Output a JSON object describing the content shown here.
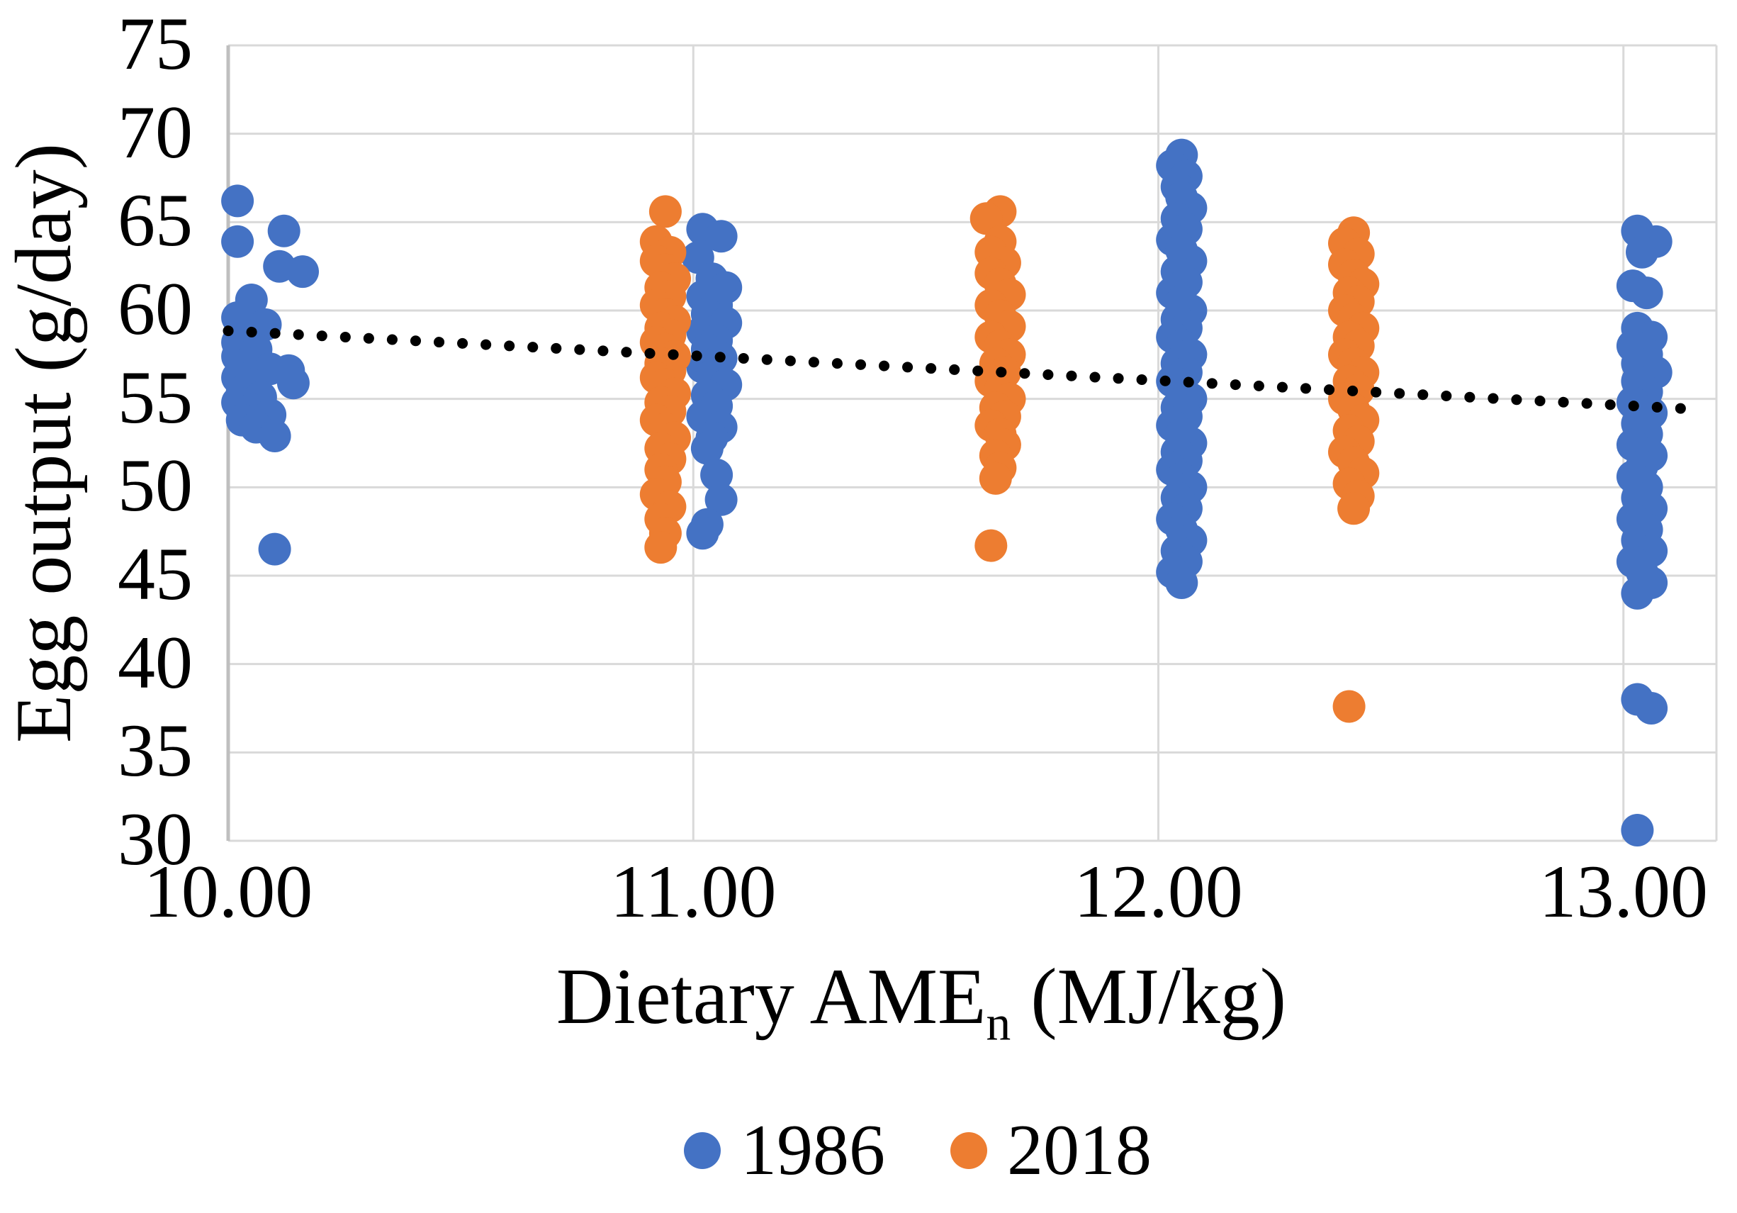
{
  "colors": {
    "series_1986": "#4472C4",
    "series_2018": "#ED7D31",
    "gridline": "#D9D9D9",
    "axis_line": "#BFBFBF",
    "trendline": "#000000",
    "background": "#FFFFFF",
    "text": "#000000"
  },
  "chart_data": {
    "type": "scatter",
    "title": "",
    "xlabel": {
      "text": "Dietary AME",
      "subscript": "n",
      "suffix": " (MJ/kg)"
    },
    "ylabel": "Egg output (g/day)",
    "xlim": [
      10.0,
      13.2
    ],
    "ylim": [
      30,
      75
    ],
    "grid": true,
    "legend_position": "bottom",
    "x_ticks": [
      {
        "value": 10,
        "label": "10.00"
      },
      {
        "value": 11,
        "label": "11.00"
      },
      {
        "value": 12,
        "label": "12.00"
      },
      {
        "value": 13,
        "label": "13.00"
      }
    ],
    "y_ticks": [
      {
        "value": 30,
        "label": "30"
      },
      {
        "value": 35,
        "label": "35"
      },
      {
        "value": 40,
        "label": "40"
      },
      {
        "value": 45,
        "label": "45"
      },
      {
        "value": 50,
        "label": "50"
      },
      {
        "value": 55,
        "label": "55"
      },
      {
        "value": 60,
        "label": "60"
      },
      {
        "value": 65,
        "label": "65"
      },
      {
        "value": 70,
        "label": "70"
      },
      {
        "value": 75,
        "label": "75"
      }
    ],
    "trendline": {
      "type": "linear",
      "style": "dotted",
      "color": "#000000",
      "x1": 10.0,
      "y1": 58.85,
      "x2": 13.13,
      "y2": 54.45
    },
    "series": [
      {
        "name": "1986",
        "color": "#4472C4",
        "points": [
          [
            10.02,
            66.2
          ],
          [
            10.12,
            64.5
          ],
          [
            10.02,
            63.9
          ],
          [
            10.11,
            62.5
          ],
          [
            10.16,
            62.2
          ],
          [
            10.05,
            60.6
          ],
          [
            10.02,
            59.6
          ],
          [
            10.08,
            59.2
          ],
          [
            10.03,
            58.7
          ],
          [
            10.02,
            58.2
          ],
          [
            10.06,
            57.8
          ],
          [
            10.02,
            57.4
          ],
          [
            10.04,
            57.0
          ],
          [
            10.09,
            56.7
          ],
          [
            10.13,
            56.6
          ],
          [
            10.02,
            56.2
          ],
          [
            10.14,
            55.9
          ],
          [
            10.05,
            55.8
          ],
          [
            10.03,
            55.4
          ],
          [
            10.07,
            55.1
          ],
          [
            10.02,
            54.8
          ],
          [
            10.05,
            54.4
          ],
          [
            10.09,
            54.1
          ],
          [
            10.03,
            53.8
          ],
          [
            10.06,
            53.4
          ],
          [
            10.1,
            52.9
          ],
          [
            10.1,
            46.5
          ],
          [
            11.02,
            64.6
          ],
          [
            11.06,
            64.2
          ],
          [
            11.01,
            63.0
          ],
          [
            11.04,
            61.8
          ],
          [
            11.07,
            61.3
          ],
          [
            11.02,
            60.8
          ],
          [
            11.05,
            60.3
          ],
          [
            11.03,
            59.8
          ],
          [
            11.07,
            59.3
          ],
          [
            11.02,
            58.8
          ],
          [
            11.05,
            58.3
          ],
          [
            11.03,
            57.8
          ],
          [
            11.06,
            57.3
          ],
          [
            11.02,
            56.8
          ],
          [
            11.04,
            56.3
          ],
          [
            11.07,
            55.8
          ],
          [
            11.03,
            55.2
          ],
          [
            11.05,
            54.6
          ],
          [
            11.02,
            54.0
          ],
          [
            11.06,
            53.4
          ],
          [
            11.04,
            52.8
          ],
          [
            11.03,
            52.2
          ],
          [
            11.05,
            50.7
          ],
          [
            11.06,
            49.3
          ],
          [
            11.03,
            47.9
          ],
          [
            11.02,
            47.4
          ],
          [
            12.05,
            68.8
          ],
          [
            12.03,
            68.2
          ],
          [
            12.06,
            67.6
          ],
          [
            12.04,
            67.0
          ],
          [
            12.05,
            66.4
          ],
          [
            12.07,
            65.8
          ],
          [
            12.04,
            65.2
          ],
          [
            12.06,
            64.6
          ],
          [
            12.03,
            64.0
          ],
          [
            12.05,
            63.4
          ],
          [
            12.07,
            62.8
          ],
          [
            12.04,
            62.2
          ],
          [
            12.06,
            61.6
          ],
          [
            12.03,
            61.0
          ],
          [
            12.05,
            60.5
          ],
          [
            12.07,
            60.0
          ],
          [
            12.04,
            59.5
          ],
          [
            12.06,
            59.0
          ],
          [
            12.03,
            58.5
          ],
          [
            12.05,
            58.0
          ],
          [
            12.07,
            57.5
          ],
          [
            12.04,
            57.0
          ],
          [
            12.06,
            56.5
          ],
          [
            12.03,
            56.0
          ],
          [
            12.05,
            55.5
          ],
          [
            12.07,
            55.0
          ],
          [
            12.04,
            54.5
          ],
          [
            12.06,
            54.0
          ],
          [
            12.03,
            53.5
          ],
          [
            12.05,
            53.0
          ],
          [
            12.07,
            52.5
          ],
          [
            12.04,
            52.0
          ],
          [
            12.06,
            51.5
          ],
          [
            12.03,
            51.0
          ],
          [
            12.05,
            50.5
          ],
          [
            12.07,
            50.0
          ],
          [
            12.04,
            49.4
          ],
          [
            12.06,
            48.8
          ],
          [
            12.03,
            48.2
          ],
          [
            12.05,
            47.6
          ],
          [
            12.07,
            47.0
          ],
          [
            12.04,
            46.4
          ],
          [
            12.06,
            45.8
          ],
          [
            12.03,
            45.2
          ],
          [
            12.05,
            44.6
          ],
          [
            13.03,
            64.5
          ],
          [
            13.07,
            63.9
          ],
          [
            13.04,
            63.3
          ],
          [
            13.02,
            61.4
          ],
          [
            13.05,
            61.0
          ],
          [
            13.03,
            59.0
          ],
          [
            13.06,
            58.5
          ],
          [
            13.02,
            58.0
          ],
          [
            13.05,
            57.5
          ],
          [
            13.03,
            57.0
          ],
          [
            13.07,
            56.5
          ],
          [
            13.03,
            56.0
          ],
          [
            13.05,
            55.4
          ],
          [
            13.02,
            54.8
          ],
          [
            13.06,
            54.2
          ],
          [
            13.03,
            53.6
          ],
          [
            13.05,
            53.0
          ],
          [
            13.02,
            52.4
          ],
          [
            13.06,
            51.8
          ],
          [
            13.04,
            51.2
          ],
          [
            13.02,
            50.6
          ],
          [
            13.05,
            50.0
          ],
          [
            13.03,
            49.4
          ],
          [
            13.06,
            48.8
          ],
          [
            13.02,
            48.2
          ],
          [
            13.05,
            47.6
          ],
          [
            13.03,
            47.0
          ],
          [
            13.06,
            46.4
          ],
          [
            13.02,
            45.8
          ],
          [
            13.04,
            45.2
          ],
          [
            13.06,
            44.6
          ],
          [
            13.03,
            44.0
          ],
          [
            13.03,
            38.0
          ],
          [
            13.06,
            37.5
          ],
          [
            13.03,
            30.6
          ]
        ]
      },
      {
        "name": "2018",
        "color": "#ED7D31",
        "points": [
          [
            10.94,
            65.6
          ],
          [
            10.92,
            63.9
          ],
          [
            10.95,
            63.3
          ],
          [
            10.92,
            62.8
          ],
          [
            10.94,
            62.3
          ],
          [
            10.96,
            61.8
          ],
          [
            10.93,
            61.3
          ],
          [
            10.95,
            60.8
          ],
          [
            10.92,
            60.3
          ],
          [
            10.94,
            59.8
          ],
          [
            10.96,
            59.4
          ],
          [
            10.93,
            59.0
          ],
          [
            10.95,
            58.6
          ],
          [
            10.92,
            58.2
          ],
          [
            10.94,
            57.8
          ],
          [
            10.96,
            57.4
          ],
          [
            10.93,
            57.0
          ],
          [
            10.95,
            56.6
          ],
          [
            10.92,
            56.2
          ],
          [
            10.94,
            55.8
          ],
          [
            10.96,
            55.3
          ],
          [
            10.93,
            54.8
          ],
          [
            10.95,
            54.3
          ],
          [
            10.92,
            53.8
          ],
          [
            10.94,
            53.3
          ],
          [
            10.96,
            52.8
          ],
          [
            10.93,
            52.2
          ],
          [
            10.95,
            51.6
          ],
          [
            10.93,
            51.0
          ],
          [
            10.94,
            50.3
          ],
          [
            10.92,
            49.6
          ],
          [
            10.95,
            48.9
          ],
          [
            10.93,
            48.2
          ],
          [
            10.94,
            47.4
          ],
          [
            10.93,
            46.6
          ],
          [
            11.66,
            65.6
          ],
          [
            11.63,
            65.2
          ],
          [
            11.66,
            63.9
          ],
          [
            11.64,
            63.3
          ],
          [
            11.67,
            62.7
          ],
          [
            11.64,
            62.1
          ],
          [
            11.66,
            61.5
          ],
          [
            11.68,
            60.9
          ],
          [
            11.64,
            60.3
          ],
          [
            11.66,
            59.7
          ],
          [
            11.68,
            59.1
          ],
          [
            11.64,
            58.5
          ],
          [
            11.66,
            58.0
          ],
          [
            11.68,
            57.5
          ],
          [
            11.65,
            57.0
          ],
          [
            11.67,
            56.5
          ],
          [
            11.64,
            56.0
          ],
          [
            11.66,
            55.5
          ],
          [
            11.68,
            55.0
          ],
          [
            11.65,
            54.5
          ],
          [
            11.67,
            54.0
          ],
          [
            11.64,
            53.5
          ],
          [
            11.66,
            53.0
          ],
          [
            11.67,
            52.4
          ],
          [
            11.65,
            51.8
          ],
          [
            11.66,
            51.1
          ],
          [
            11.65,
            50.5
          ],
          [
            11.64,
            46.7
          ],
          [
            12.42,
            64.4
          ],
          [
            12.4,
            63.8
          ],
          [
            12.43,
            63.2
          ],
          [
            12.4,
            62.6
          ],
          [
            12.42,
            62.0
          ],
          [
            12.44,
            61.5
          ],
          [
            12.41,
            61.0
          ],
          [
            12.43,
            60.5
          ],
          [
            12.4,
            60.0
          ],
          [
            12.42,
            59.5
          ],
          [
            12.44,
            59.0
          ],
          [
            12.41,
            58.5
          ],
          [
            12.43,
            58.0
          ],
          [
            12.4,
            57.5
          ],
          [
            12.42,
            57.0
          ],
          [
            12.44,
            56.5
          ],
          [
            12.41,
            56.0
          ],
          [
            12.43,
            55.5
          ],
          [
            12.4,
            55.0
          ],
          [
            12.42,
            54.4
          ],
          [
            12.44,
            53.8
          ],
          [
            12.41,
            53.2
          ],
          [
            12.43,
            52.6
          ],
          [
            12.4,
            52.0
          ],
          [
            12.42,
            51.4
          ],
          [
            12.44,
            50.8
          ],
          [
            12.41,
            50.2
          ],
          [
            12.43,
            49.5
          ],
          [
            12.42,
            48.8
          ],
          [
            12.41,
            37.6
          ]
        ]
      }
    ]
  },
  "legend": {
    "items": [
      {
        "label": "1986",
        "color": "#4472C4"
      },
      {
        "label": "2018",
        "color": "#ED7D31"
      }
    ]
  }
}
